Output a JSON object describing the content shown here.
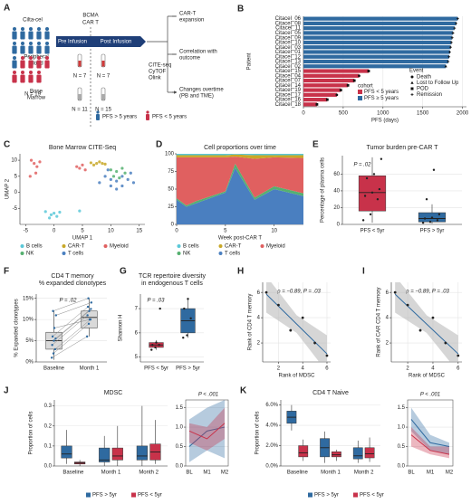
{
  "diagram": {
    "panel": "A",
    "product": "Cilta-cel",
    "n_total": "N = 19",
    "car_label": [
      "BCMA",
      "CAR T"
    ],
    "phases": [
      "Pre Infusion",
      "Post Infusion"
    ],
    "samples": [
      {
        "label": [
          "Peripheral",
          "Blood"
        ],
        "n": [
          "N = 7",
          "N = 7"
        ]
      },
      {
        "label": [
          "Bone",
          "Marrow"
        ],
        "n": [
          "N = 11",
          "N = 15"
        ]
      }
    ],
    "assays": [
      "CITE-seq",
      "CyTOF",
      "Olink"
    ],
    "outcomes": [
      [
        "CAR-T",
        "expansion"
      ],
      [
        "Correlation with",
        "outcome"
      ],
      [
        "Changes overtime",
        "(PB and TME)"
      ]
    ],
    "legend": [
      "PFS > 5 years",
      "PFS < 5 years"
    ]
  },
  "chart_data": [
    {
      "panel": "B",
      "type": "bar",
      "orientation": "horizontal",
      "ylabel": "Patient",
      "xlabel": "PFS (days)",
      "categories": [
        "Citacel_06",
        "Citacel_08",
        "Citacel_11",
        "Citacel_05",
        "Citacel_09",
        "Citacel_10",
        "Citacel_03",
        "Citacel_01",
        "Citacel_12",
        "Citacel_13",
        "Citacel_02",
        "Citacel_15",
        "Citacel_04",
        "Citacel_07",
        "Citacel_14",
        "Citacel_19",
        "Citacel_17",
        "Citacel_16",
        "Citacel_18"
      ],
      "series": [
        {
          "name": "PFS < 5 years",
          "color": "#c8324a",
          "values": [
            null,
            null,
            null,
            null,
            null,
            null,
            null,
            null,
            null,
            null,
            null,
            820,
            700,
            640,
            560,
            470,
            420,
            300,
            170
          ]
        },
        {
          "name": "PFS ≥ 5 years",
          "color": "#2f6aa0",
          "values": [
            1940,
            1920,
            1900,
            1880,
            1870,
            1860,
            1850,
            1840,
            1830,
            1820,
            1790,
            null,
            null,
            null,
            null,
            null,
            null,
            null,
            null
          ]
        }
      ],
      "event_markers": [
        "plus",
        "plus",
        "plus",
        "plus",
        "plus",
        "plus",
        "plus",
        "plus",
        "plus",
        "plus",
        "triangle",
        "square",
        "circle",
        "square",
        "square",
        "square",
        "circle",
        "square",
        "square"
      ],
      "legend_title": "cohort",
      "event_title": "Event",
      "event_legend": [
        {
          "name": "Death",
          "marker": "circle"
        },
        {
          "name": "Lost to Follow Up",
          "marker": "triangle"
        },
        {
          "name": "POD",
          "marker": "square"
        },
        {
          "name": "Remission",
          "marker": "plus"
        }
      ],
      "xlim": [
        0,
        2050
      ],
      "xticks": [
        0,
        500,
        1000,
        1500,
        2000
      ],
      "grid": true
    },
    {
      "panel": "C",
      "type": "scatter",
      "title": "Bone Marrow CITE-Seq",
      "xlabel": "UMAP 1",
      "ylabel": "UMAP 2",
      "xlim": [
        -6,
        16
      ],
      "ylim": [
        -10,
        12
      ],
      "xticks": [
        -5,
        0,
        5,
        10,
        15
      ],
      "yticks": [
        -5,
        0,
        5,
        10
      ],
      "series": [
        {
          "name": "B cells",
          "color": "#5bc8d8",
          "x": [
            -1.5,
            -0.5,
            0,
            0.5,
            1,
            -0.8,
            4.5
          ],
          "y": [
            -6,
            -7,
            -6.5,
            -7.5,
            -6.2,
            -8,
            -5.8
          ]
        },
        {
          "name": "CAR-T",
          "color": "#c8a828",
          "x": [
            7,
            7.5,
            8,
            8.5,
            9,
            6.5
          ],
          "y": [
            8.5,
            9,
            9.5,
            9,
            8.8,
            9.2
          ]
        },
        {
          "name": "Myeloid",
          "color": "#e06060",
          "x": [
            -4,
            -3.5,
            -3,
            -2.5,
            -3.2,
            4,
            4.5,
            5,
            5.5,
            -4.2
          ],
          "y": [
            10,
            9,
            8,
            9.5,
            6,
            8,
            7.5,
            8.5,
            7,
            5
          ]
        },
        {
          "name": "NK",
          "color": "#55b070",
          "x": [
            10,
            11,
            12,
            10.5,
            11.5,
            12.5
          ],
          "y": [
            7,
            6.5,
            7.5,
            5,
            4.5,
            6
          ]
        },
        {
          "name": "T cells",
          "color": "#4a7fc0",
          "x": [
            8,
            9,
            10,
            11,
            12,
            13,
            14,
            9.5,
            11,
            13.5,
            10,
            12
          ],
          "y": [
            3,
            5,
            2,
            3.5,
            2,
            4,
            3,
            7,
            1,
            6,
            4,
            5
          ]
        }
      ]
    },
    {
      "panel": "D",
      "type": "area",
      "stacked": true,
      "title": "Cell proportions over time",
      "xlabel": "Week post-CAR T",
      "xlim": [
        0,
        13
      ],
      "ylim": [
        0,
        100
      ],
      "xticks": [
        0,
        5,
        10
      ],
      "yticks": [
        0,
        25,
        50,
        75,
        100
      ],
      "x": [
        0,
        1,
        2,
        5,
        6,
        8,
        10,
        13
      ],
      "series": [
        {
          "name": "B cells",
          "color": "#5bc8d8",
          "values": [
            2,
            2,
            2,
            2,
            1,
            2,
            2,
            2
          ]
        },
        {
          "name": "CAR-T",
          "color": "#c8a828",
          "values": [
            3,
            3,
            3,
            3,
            3,
            5,
            3,
            4
          ]
        },
        {
          "name": "Myeloid",
          "color": "#e06060",
          "values": [
            58,
            68,
            62,
            48,
            10,
            55,
            41,
            50
          ]
        },
        {
          "name": "NK",
          "color": "#55b070",
          "values": [
            2,
            2,
            3,
            2,
            6,
            3,
            4,
            4
          ]
        },
        {
          "name": "T cells",
          "color": "#4a7fc0",
          "values": [
            35,
            25,
            30,
            45,
            80,
            35,
            50,
            40
          ]
        }
      ]
    },
    {
      "panel": "E",
      "type": "box",
      "title": "Tumor burden pre-CAR T",
      "ylabel": "Percentage of plasma cells",
      "annotation": "P = .02",
      "categories": [
        "PFS < 5yr",
        "PFS > 5yr"
      ],
      "colors": [
        "#c8324a",
        "#2f6aa0"
      ],
      "point_color": "#222",
      "ylim": [
        0,
        82
      ],
      "yticks": [
        0,
        20,
        40,
        60
      ],
      "grid": true,
      "boxes": [
        {
          "min": 2,
          "q1": 16,
          "median": 38,
          "q3": 58,
          "max": 80
        },
        {
          "min": 1,
          "q1": 3,
          "median": 7,
          "q3": 14,
          "max": 24
        }
      ],
      "points": [
        [
          5,
          12,
          30,
          34,
          38,
          42,
          55,
          60,
          78
        ],
        [
          2,
          3,
          5,
          7,
          8,
          12,
          30,
          65
        ]
      ]
    },
    {
      "panel": "F",
      "type": "box",
      "paired": true,
      "title": [
        "CD4 T memory",
        "% expanded clonotypes"
      ],
      "ylabel": "% Expanded clonotypes",
      "annotation": "P = .02",
      "categories": [
        "Baseline",
        "Month 1"
      ],
      "box_color": "#d9d9d9",
      "point_color": "#2f6aa0",
      "ylim": [
        0,
        16
      ],
      "yticks": [
        {
          "value": 0,
          "label": "0%"
        },
        {
          "value": 5,
          "label": "5%"
        },
        {
          "value": 10,
          "label": "10%"
        },
        {
          "value": 15,
          "label": "15%"
        }
      ],
      "grid": true,
      "boxes": [
        {
          "min": 0.5,
          "q1": 3,
          "median": 5,
          "q3": 7,
          "max": 12
        },
        {
          "min": 6,
          "q1": 8,
          "median": 10.5,
          "q3": 12,
          "max": 15
        }
      ],
      "points": [
        [
          1,
          2,
          3,
          4,
          5,
          5.5,
          6,
          8,
          11,
          12
        ],
        [
          6,
          9,
          10,
          11,
          12,
          12.5,
          13,
          10,
          14,
          15
        ]
      ]
    },
    {
      "panel": "G",
      "type": "box",
      "title": [
        "TCR repertoire diversity",
        "in endogenous T cells"
      ],
      "ylabel": "Shannon H",
      "annotation": "P = .03",
      "categories": [
        "PFS < 5yr",
        "PFS > 5yr"
      ],
      "colors": [
        "#c8324a",
        "#2f6aa0"
      ],
      "point_color": "#222",
      "ylim": [
        4.8,
        7.6
      ],
      "yticks": [
        5,
        6,
        7
      ],
      "grid": true,
      "boxes": [
        {
          "min": 5.3,
          "q1": 5.4,
          "median": 5.5,
          "q3": 5.6,
          "max": 5.7
        },
        {
          "min": 5.8,
          "q1": 6.0,
          "median": 6.5,
          "q3": 7.0,
          "max": 7.4
        }
      ],
      "points": [
        [
          5.3,
          5.4,
          5.5,
          5.5,
          5.6,
          7.0
        ],
        [
          5.8,
          5.9,
          6.6,
          7.0,
          7.4
        ]
      ]
    },
    {
      "panel": "H",
      "type": "scatter",
      "xlabel": "Rank of MDSC",
      "ylabel": "Rank of CD4 T memory",
      "annotation": "ρ = −0.89, P = .03",
      "xlim": [
        0.7,
        6.3
      ],
      "ylim": [
        0.5,
        6.8
      ],
      "xticks": [
        2,
        4,
        6
      ],
      "yticks": [
        2,
        4,
        6
      ],
      "grid": true,
      "series": [
        {
          "color": "#222",
          "x": [
            1,
            2,
            3,
            4,
            5,
            6
          ],
          "y": [
            6,
            5,
            3,
            4,
            2,
            1
          ]
        }
      ],
      "fit": {
        "color": "#2f6aa0",
        "x": [
          1,
          3.5,
          6
        ],
        "y": [
          5.86,
          3.5,
          1.14
        ],
        "lower": [
          4.4,
          2.8,
          -0.3
        ],
        "upper": [
          7.3,
          4.2,
          2.6
        ]
      }
    },
    {
      "panel": "I",
      "type": "scatter",
      "xlabel": "Rank of MDSC",
      "ylabel": "Rank of CAR CD4 T memory",
      "annotation": "ρ = −0.89, P = .03",
      "xlim": [
        0.7,
        6.3
      ],
      "ylim": [
        0.5,
        6.8
      ],
      "xticks": [
        2,
        4,
        6
      ],
      "yticks": [
        2,
        4,
        6
      ],
      "grid": true,
      "series": [
        {
          "color": "#222",
          "x": [
            1,
            2,
            3,
            4,
            5,
            6
          ],
          "y": [
            6,
            5,
            3,
            4,
            2,
            1
          ]
        }
      ],
      "fit": {
        "color": "#2f6aa0",
        "x": [
          1,
          3.5,
          6
        ],
        "y": [
          5.86,
          3.5,
          1.14
        ],
        "lower": [
          4.4,
          2.8,
          -0.3
        ],
        "upper": [
          7.3,
          4.2,
          2.6
        ]
      }
    },
    {
      "panel": "J",
      "type": "box",
      "title": "MDSC",
      "ylabel": "Proportion of cells",
      "categories": [
        "Baseline",
        "Month 1",
        "Month 2"
      ],
      "ylim": [
        0,
        0.33
      ],
      "yticks": [
        {
          "value": 0,
          "label": "0.0"
        },
        0.1,
        0.2,
        0.3
      ],
      "grid": true,
      "series": [
        {
          "name": "PFS > 5yr",
          "color": "#2f6aa0",
          "boxes": [
            {
              "min": 0.01,
              "q1": 0.04,
              "median": 0.06,
              "q3": 0.1,
              "max": 0.18
            },
            {
              "min": 0,
              "q1": 0.02,
              "median": 0.03,
              "q3": 0.09,
              "max": 0.15
            },
            {
              "min": 0,
              "q1": 0.03,
              "median": 0.05,
              "q3": 0.1,
              "max": 0.3
            }
          ]
        },
        {
          "name": "PFS < 5yr",
          "color": "#c8324a",
          "boxes": [
            {
              "min": 0,
              "q1": 0.01,
              "median": 0.015,
              "q3": 0.02,
              "max": 0.03
            },
            {
              "min": 0,
              "q1": 0.03,
              "median": 0.05,
              "q3": 0.09,
              "max": 0.2
            },
            {
              "min": 0.01,
              "q1": 0.03,
              "median": 0.07,
              "q3": 0.11,
              "max": 0.23
            }
          ]
        }
      ]
    },
    {
      "type": "line",
      "annotation": "P < .001",
      "categories": [
        "BL",
        "M1",
        "M2"
      ],
      "ylim": [
        0,
        1.7
      ],
      "yticks": [
        {
          "value": 0,
          "label": "0.0"
        },
        0.5,
        {
          "value": 1,
          "label": "1.0"
        },
        1.5
      ],
      "grid": true,
      "series": [
        {
          "color": "#2f6aa0",
          "values": [
            0.5,
            0.9,
            1.0
          ],
          "lower": [
            0.1,
            0.4,
            0.2
          ],
          "upper": [
            1.2,
            1.5,
            1.7
          ]
        },
        {
          "color": "#c8324a",
          "values": [
            0.9,
            0.7,
            1.1
          ],
          "lower": [
            0.6,
            0.4,
            0.7
          ],
          "upper": [
            1.1,
            1.0,
            1.5
          ]
        }
      ]
    },
    {
      "panel": "K",
      "type": "box",
      "title": "CD4 T Naive",
      "ylabel": "Proportion of cells",
      "categories": [
        "Baseline",
        "Month 1",
        "Month 2"
      ],
      "ylim": [
        0,
        6.5
      ],
      "yticks": [
        {
          "value": 0,
          "label": "0.0%"
        },
        {
          "value": 2,
          "label": "2.0%"
        },
        {
          "value": 4,
          "label": "4.0%"
        },
        {
          "value": 6,
          "label": "6.0%"
        }
      ],
      "grid": true,
      "series": [
        {
          "name": "PFS > 5yr",
          "color": "#2f6aa0",
          "boxes": [
            {
              "min": 3.5,
              "q1": 4.2,
              "median": 4.8,
              "q3": 5.4,
              "max": 6.0
            },
            {
              "min": 0.3,
              "q1": 0.9,
              "median": 1.8,
              "q3": 2.7,
              "max": 3.4
            },
            {
              "min": 0.3,
              "q1": 0.7,
              "median": 1.0,
              "q3": 1.8,
              "max": 2.5
            }
          ]
        },
        {
          "name": "PFS < 5yr",
          "color": "#c8324a",
          "boxes": [
            {
              "min": 0.5,
              "q1": 0.9,
              "median": 1.3,
              "q3": 2.0,
              "max": 2.6
            },
            {
              "min": 0.5,
              "q1": 0.9,
              "median": 1.1,
              "q3": 1.4,
              "max": 1.6
            },
            {
              "min": 0.4,
              "q1": 0.8,
              "median": 1.2,
              "q3": 1.8,
              "max": 2.8
            }
          ]
        }
      ]
    },
    {
      "type": "line",
      "annotation": "P < .001",
      "categories": [
        "BL",
        "M1",
        "M2"
      ],
      "ylim": [
        0,
        1.7
      ],
      "yticks": [
        {
          "value": 0,
          "label": "0.0"
        },
        0.5,
        {
          "value": 1,
          "label": "1.0"
        },
        1.5
      ],
      "grid": true,
      "series": [
        {
          "color": "#2f6aa0",
          "values": [
            1.2,
            0.6,
            0.5
          ],
          "lower": [
            0.9,
            0.4,
            0.3
          ],
          "upper": [
            1.5,
            0.8,
            0.6
          ]
        },
        {
          "color": "#c8324a",
          "values": [
            0.8,
            0.4,
            0.3
          ],
          "lower": [
            0.5,
            0.3,
            0.2
          ],
          "upper": [
            1.0,
            0.5,
            0.5
          ]
        }
      ]
    }
  ]
}
